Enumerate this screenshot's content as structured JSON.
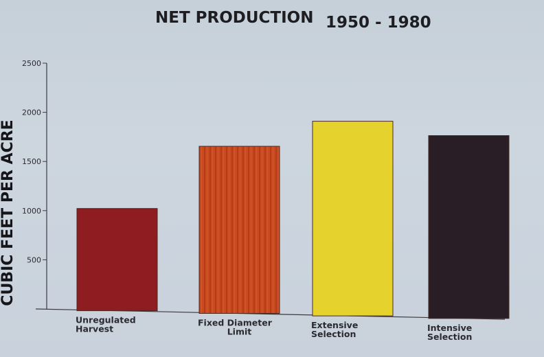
{
  "chart_data": {
    "type": "bar",
    "title": "NET PRODUCTION",
    "subtitle": "1950 - 1980",
    "ylabel": "CUBIC FEET PER ACRE",
    "xlabel": "",
    "ylim": [
      0,
      2500
    ],
    "yticks": [
      500,
      1000,
      1500,
      2000,
      2500
    ],
    "grid": false,
    "categories": [
      [
        "Unregulated",
        "Harvest"
      ],
      [
        "Fixed  Diameter",
        "Limit"
      ],
      [
        "Extensive",
        "Selection"
      ],
      [
        "Intensive",
        "Selection"
      ]
    ],
    "values": [
      1040,
      1700,
      1980,
      1860
    ],
    "colors": [
      "#8e1c20",
      "#c5461f",
      "#e6d22c",
      "#2a1e26"
    ]
  }
}
